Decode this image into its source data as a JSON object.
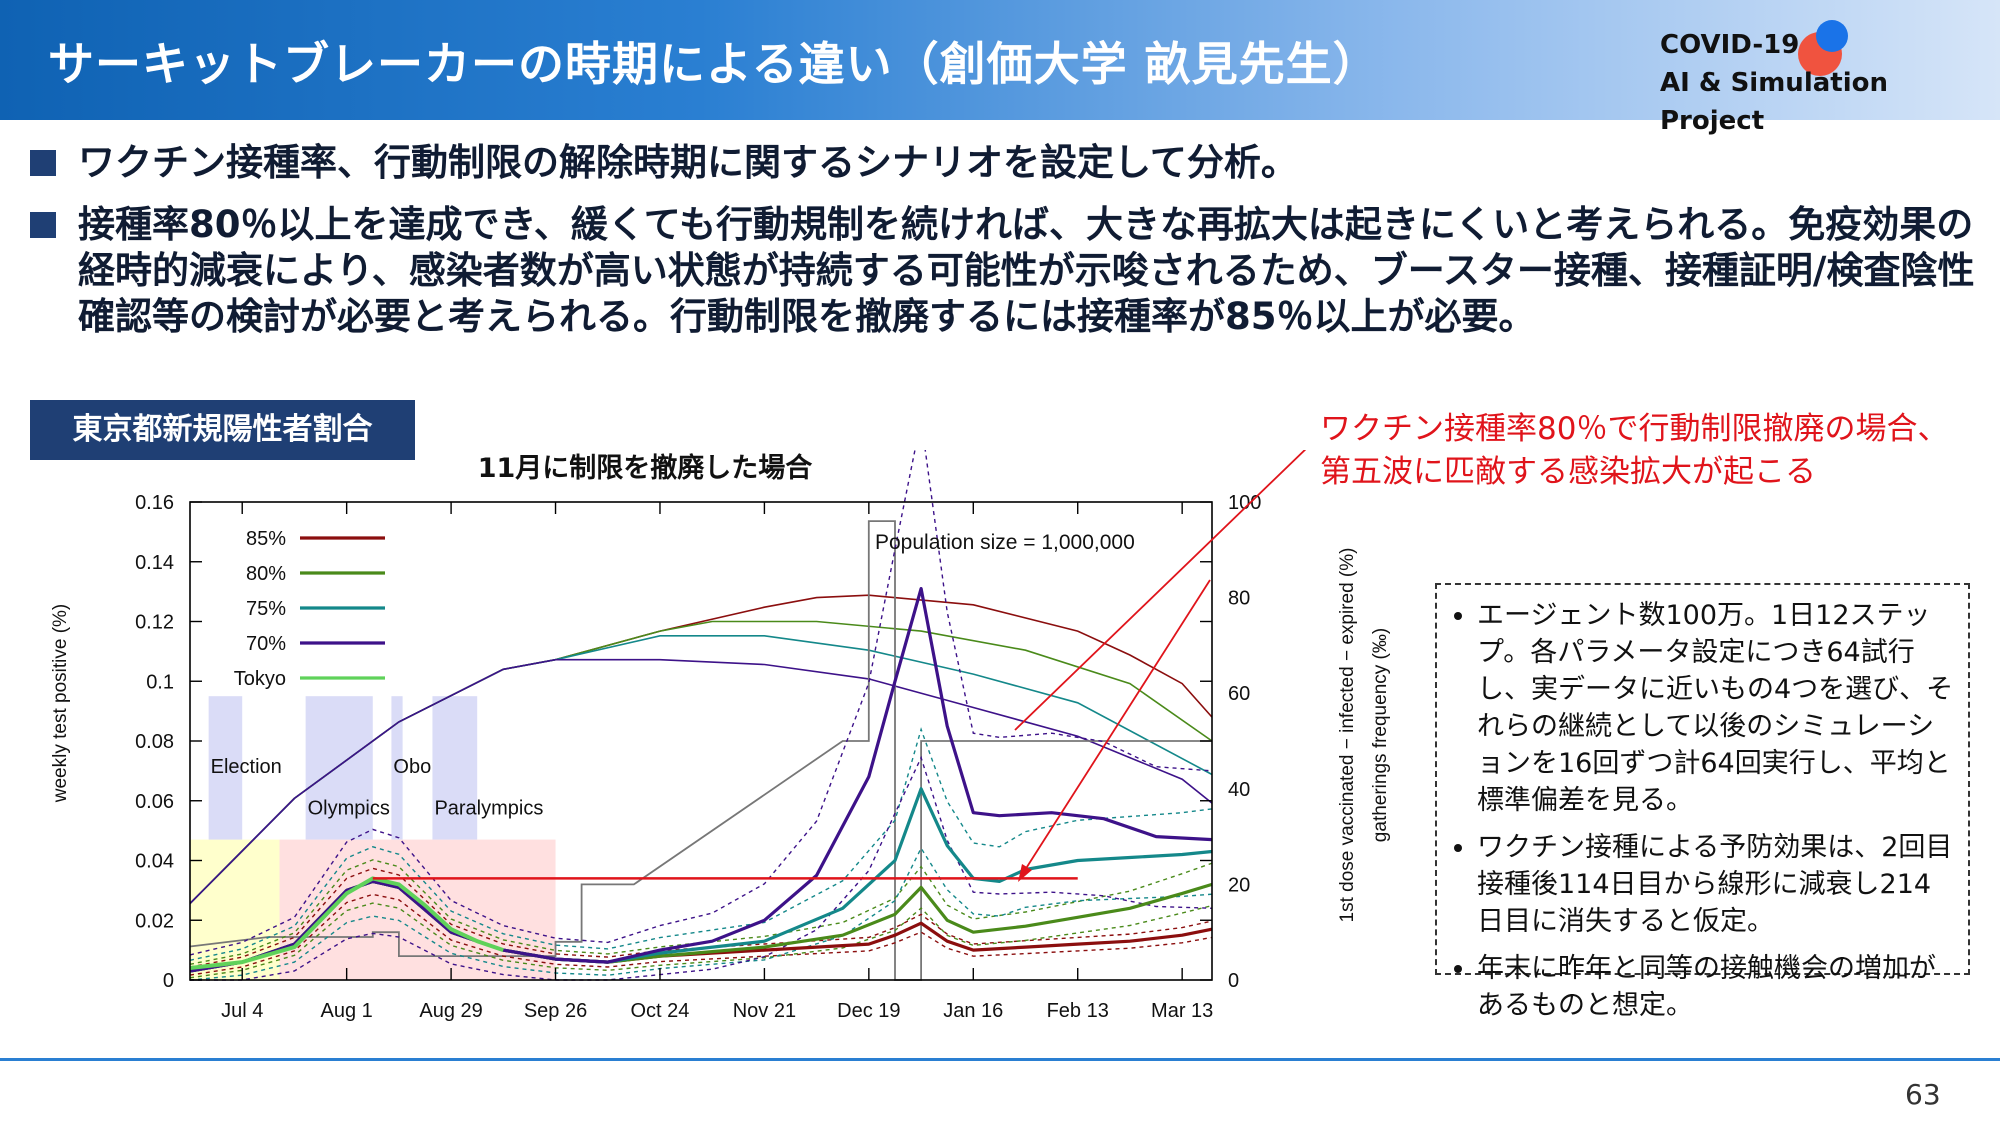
{
  "header": {
    "title": "サーキットブレーカーの時期による違い（創価大学 畝見先生）",
    "brand_line1": "COVID-19",
    "brand_line2": "AI & Simulation Project",
    "colors": {
      "accent": "#1266bc",
      "dot_red": "#f0533f",
      "dot_blue": "#1a73e8"
    }
  },
  "bullets": [
    "ワクチン接種率、行動制限の解除時期に関するシナリオを設定して分析。",
    "接種率80％以上を達成でき、緩くても行動規制を続ければ、大きな再拡大は起きにくいと考えられる。免疫効果の経時的減衰により、感染者数が高い状態が持続する可能性が示唆されるため、ブースター接種、接種証明/検査陰性確認等の検討が必要と考えられる。行動制限を撤廃するには接種率が85％以上が必要。"
  ],
  "section_tag": "東京都新規陽性者割合",
  "callout": [
    "ワクチン接種率80％で行動制限撤廃の場合、",
    "第五波に匹敵する感染拡大が起こる"
  ],
  "notes": [
    "エージェント数100万。1日12ステップ。各パラメータ設定につき64試行し、実データに近いもの4つを選び、それらの継続として以後のシミュレーションを16回ずつ計64回実行し、平均と標準偏差を見る。",
    "ワクチン接種による予防効果は、2回目接種後114日目から線形に減衰し214日目に消失すると仮定。",
    "年末に昨年と同等の接触機会の増加があるものと想定。"
  ],
  "page_number": "63",
  "chart_data": {
    "type": "line",
    "title": "11月に制限を撤廃した場合",
    "annotation": "Population size = 1,000,000",
    "ylabel": "weekly test positive (%)",
    "y2label_line1": "1st dose vaccinated − infected − expired (%)",
    "y2label_line2": "gatherings frequency (‰)",
    "ylim": [
      0,
      0.16
    ],
    "y2lim": [
      0,
      100
    ],
    "yticks": [
      "0",
      "0.02",
      "0.04",
      "0.06",
      "0.08",
      "0.1",
      "0.12",
      "0.14",
      "0.16"
    ],
    "y2ticks": [
      "0",
      "20",
      "40",
      "60",
      "80",
      "100"
    ],
    "xdomain_days": [
      0,
      274
    ],
    "xticks": [
      {
        "label": "Jul 4",
        "day": 14
      },
      {
        "label": "Aug 1",
        "day": 42
      },
      {
        "label": "Aug 29",
        "day": 70
      },
      {
        "label": "Sep 26",
        "day": 98
      },
      {
        "label": "Oct 24",
        "day": 126
      },
      {
        "label": "Nov 21",
        "day": 154
      },
      {
        "label": "Dec 19",
        "day": 182
      },
      {
        "label": "Jan 16",
        "day": 210
      },
      {
        "label": "Feb 13",
        "day": 238
      },
      {
        "label": "Mar 13",
        "day": 266
      }
    ],
    "events": [
      {
        "label": "Election",
        "start": 5,
        "end": 14
      },
      {
        "label": "Olympics",
        "start": 31,
        "end": 49
      },
      {
        "label": "Obon",
        "start": 54,
        "end": 57
      },
      {
        "label": "Paralympics",
        "start": 65,
        "end": 77
      }
    ],
    "legend": [
      {
        "name": "85%",
        "color": "#8b0e0e"
      },
      {
        "name": "80%",
        "color": "#4a8a1a"
      },
      {
        "name": "75%",
        "color": "#14888a"
      },
      {
        "name": "70%",
        "color": "#3d1289"
      },
      {
        "name": "Tokyo",
        "color": "#5fd25a"
      }
    ],
    "threshold_y": 0.034,
    "series": [
      {
        "name": "85%",
        "color": "#8b0e0e",
        "points": [
          [
            0,
            0.003
          ],
          [
            14,
            0.006
          ],
          [
            28,
            0.012
          ],
          [
            42,
            0.03
          ],
          [
            49,
            0.033
          ],
          [
            56,
            0.031
          ],
          [
            70,
            0.016
          ],
          [
            84,
            0.01
          ],
          [
            98,
            0.007
          ],
          [
            112,
            0.006
          ],
          [
            126,
            0.008
          ],
          [
            154,
            0.01
          ],
          [
            182,
            0.012
          ],
          [
            189,
            0.015
          ],
          [
            196,
            0.019
          ],
          [
            203,
            0.013
          ],
          [
            210,
            0.01
          ],
          [
            224,
            0.011
          ],
          [
            238,
            0.012
          ],
          [
            252,
            0.013
          ],
          [
            266,
            0.015
          ],
          [
            274,
            0.017
          ]
        ],
        "band": 0.003
      },
      {
        "name": "80%",
        "color": "#4a8a1a",
        "points": [
          [
            0,
            0.003
          ],
          [
            14,
            0.006
          ],
          [
            28,
            0.012
          ],
          [
            42,
            0.03
          ],
          [
            49,
            0.033
          ],
          [
            56,
            0.031
          ],
          [
            70,
            0.016
          ],
          [
            84,
            0.01
          ],
          [
            98,
            0.007
          ],
          [
            112,
            0.006
          ],
          [
            126,
            0.008
          ],
          [
            154,
            0.011
          ],
          [
            175,
            0.015
          ],
          [
            189,
            0.022
          ],
          [
            196,
            0.031
          ],
          [
            203,
            0.02
          ],
          [
            210,
            0.016
          ],
          [
            224,
            0.018
          ],
          [
            238,
            0.021
          ],
          [
            252,
            0.024
          ],
          [
            266,
            0.029
          ],
          [
            274,
            0.032
          ]
        ],
        "band": 0.005
      },
      {
        "name": "75%",
        "color": "#14888a",
        "points": [
          [
            0,
            0.003
          ],
          [
            14,
            0.006
          ],
          [
            28,
            0.012
          ],
          [
            42,
            0.03
          ],
          [
            49,
            0.033
          ],
          [
            56,
            0.031
          ],
          [
            70,
            0.016
          ],
          [
            84,
            0.01
          ],
          [
            98,
            0.007
          ],
          [
            112,
            0.006
          ],
          [
            126,
            0.009
          ],
          [
            154,
            0.013
          ],
          [
            175,
            0.024
          ],
          [
            189,
            0.04
          ],
          [
            196,
            0.064
          ],
          [
            203,
            0.045
          ],
          [
            210,
            0.034
          ],
          [
            217,
            0.033
          ],
          [
            224,
            0.037
          ],
          [
            238,
            0.04
          ],
          [
            252,
            0.041
          ],
          [
            266,
            0.042
          ],
          [
            274,
            0.043
          ]
        ],
        "band": 0.008
      },
      {
        "name": "70%",
        "color": "#3d1289",
        "points": [
          [
            0,
            0.003
          ],
          [
            14,
            0.006
          ],
          [
            28,
            0.012
          ],
          [
            42,
            0.03
          ],
          [
            49,
            0.033
          ],
          [
            56,
            0.031
          ],
          [
            70,
            0.016
          ],
          [
            84,
            0.01
          ],
          [
            98,
            0.007
          ],
          [
            112,
            0.006
          ],
          [
            126,
            0.01
          ],
          [
            140,
            0.013
          ],
          [
            154,
            0.02
          ],
          [
            168,
            0.035
          ],
          [
            182,
            0.068
          ],
          [
            189,
            0.1
          ],
          [
            196,
            0.131
          ],
          [
            203,
            0.085
          ],
          [
            210,
            0.056
          ],
          [
            217,
            0.055
          ],
          [
            231,
            0.056
          ],
          [
            245,
            0.054
          ],
          [
            259,
            0.048
          ],
          [
            274,
            0.047
          ]
        ],
        "band": 0.012
      },
      {
        "name": "Tokyo",
        "color": "#5fd25a",
        "points": [
          [
            0,
            0.004
          ],
          [
            14,
            0.006
          ],
          [
            28,
            0.011
          ],
          [
            35,
            0.02
          ],
          [
            42,
            0.029
          ],
          [
            49,
            0.034
          ],
          [
            56,
            0.032
          ],
          [
            63,
            0.025
          ],
          [
            70,
            0.017
          ],
          [
            77,
            0.013
          ],
          [
            84,
            0.01
          ]
        ],
        "band": 0
      }
    ],
    "vaccination_curves": [
      {
        "name": "85%",
        "color": "#8b0e0e",
        "points": [
          [
            0,
            16
          ],
          [
            28,
            38
          ],
          [
            56,
            54
          ],
          [
            84,
            65
          ],
          [
            98,
            67
          ],
          [
            126,
            73
          ],
          [
            154,
            78
          ],
          [
            168,
            80
          ],
          [
            182,
            80.5
          ],
          [
            210,
            78.5
          ],
          [
            238,
            73
          ],
          [
            252,
            68
          ],
          [
            266,
            62
          ],
          [
            274,
            55
          ]
        ]
      },
      {
        "name": "80%",
        "color": "#4a8a1a",
        "points": [
          [
            0,
            16
          ],
          [
            28,
            38
          ],
          [
            56,
            54
          ],
          [
            84,
            65
          ],
          [
            98,
            67
          ],
          [
            126,
            73
          ],
          [
            140,
            75
          ],
          [
            168,
            75
          ],
          [
            196,
            73
          ],
          [
            224,
            69
          ],
          [
            252,
            62
          ],
          [
            274,
            50
          ]
        ]
      },
      {
        "name": "75%",
        "color": "#14888a",
        "points": [
          [
            0,
            16
          ],
          [
            28,
            38
          ],
          [
            56,
            54
          ],
          [
            84,
            65
          ],
          [
            98,
            67
          ],
          [
            126,
            72
          ],
          [
            154,
            72
          ],
          [
            182,
            69
          ],
          [
            210,
            64
          ],
          [
            238,
            58
          ],
          [
            274,
            43
          ]
        ]
      },
      {
        "name": "70%",
        "color": "#3d1289",
        "points": [
          [
            0,
            16
          ],
          [
            28,
            38
          ],
          [
            56,
            54
          ],
          [
            84,
            65
          ],
          [
            98,
            67
          ],
          [
            126,
            67
          ],
          [
            154,
            66
          ],
          [
            182,
            63
          ],
          [
            210,
            57
          ],
          [
            238,
            51
          ],
          [
            266,
            42
          ],
          [
            274,
            37
          ]
        ]
      }
    ],
    "gatherings_step": [
      [
        0,
        7
      ],
      [
        21,
        9
      ],
      [
        49,
        9
      ],
      [
        49,
        10
      ],
      [
        56,
        10
      ],
      [
        56,
        5
      ],
      [
        98,
        5
      ],
      [
        98,
        8
      ],
      [
        105,
        8
      ],
      [
        105,
        20
      ],
      [
        119,
        20
      ],
      [
        175,
        50
      ],
      [
        182,
        50
      ],
      [
        182,
        96
      ],
      [
        189,
        96
      ],
      [
        189,
        0
      ],
      [
        196,
        0
      ],
      [
        196,
        50
      ],
      [
        274,
        50
      ]
    ]
  }
}
